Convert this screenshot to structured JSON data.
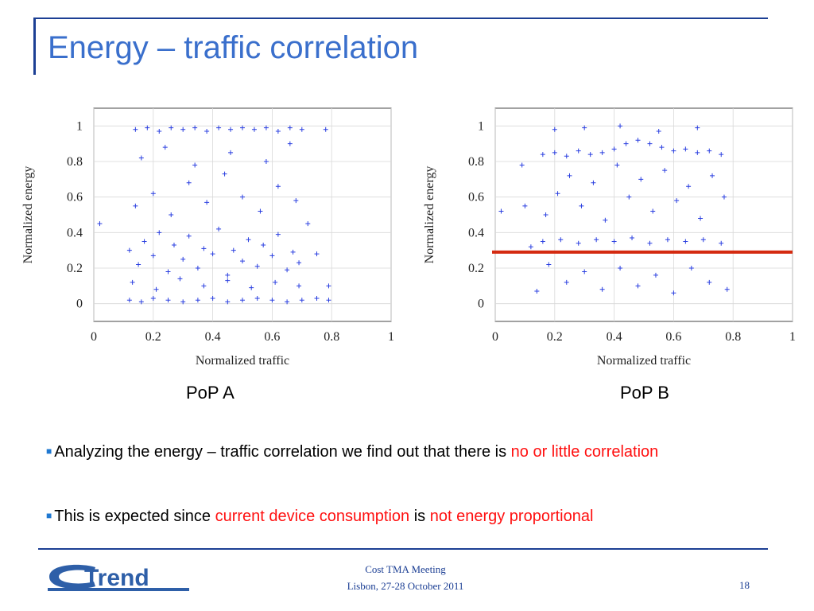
{
  "slide": {
    "title": "Energy – traffic correlation",
    "bullets": [
      [
        {
          "text": "Analyzing the energy – traffic correlation we find out that there is ",
          "red": false
        },
        {
          "text": "no or little correlation",
          "red": true
        }
      ],
      [
        {
          "text": "This is expected since ",
          "red": false
        },
        {
          "text": "current device consumption",
          "red": true
        },
        {
          "text": " is ",
          "red": false
        },
        {
          "text": "not energy proportional",
          "red": true
        }
      ]
    ],
    "footer": {
      "logo_text": "Trend",
      "meeting": "Cost TMA Meeting",
      "location_date": "Lisbon, 27-28 October 2011",
      "page": "18"
    }
  },
  "colors": {
    "title": "#3a6fcc",
    "rule": "#1c3f94",
    "points": "#2a3fe0",
    "highlight": "#ff1010",
    "reference_line": "#d42a10"
  },
  "chart_data": [
    {
      "type": "scatter",
      "caption": "PoP A",
      "xlabel": "Normalized traffic",
      "ylabel": "Normalized energy",
      "xlim": [
        0,
        1
      ],
      "ylim": [
        -0.1,
        1.1
      ],
      "xticks": [
        "0",
        "0.2",
        "0.4",
        "0.6",
        "0.8",
        "1"
      ],
      "yticks": [
        "0",
        "0.2",
        "0.4",
        "0.6",
        "0.8",
        "1"
      ],
      "grid": true,
      "marker": "+",
      "points": [
        [
          0.12,
          0.02
        ],
        [
          0.16,
          0.01
        ],
        [
          0.2,
          0.03
        ],
        [
          0.25,
          0.02
        ],
        [
          0.3,
          0.01
        ],
        [
          0.35,
          0.02
        ],
        [
          0.4,
          0.03
        ],
        [
          0.45,
          0.01
        ],
        [
          0.5,
          0.02
        ],
        [
          0.55,
          0.03
        ],
        [
          0.6,
          0.02
        ],
        [
          0.65,
          0.01
        ],
        [
          0.7,
          0.02
        ],
        [
          0.75,
          0.03
        ],
        [
          0.79,
          0.02
        ],
        [
          0.14,
          0.98
        ],
        [
          0.18,
          0.99
        ],
        [
          0.22,
          0.97
        ],
        [
          0.26,
          0.99
        ],
        [
          0.3,
          0.98
        ],
        [
          0.34,
          0.99
        ],
        [
          0.38,
          0.97
        ],
        [
          0.42,
          0.99
        ],
        [
          0.46,
          0.98
        ],
        [
          0.5,
          0.99
        ],
        [
          0.54,
          0.98
        ],
        [
          0.58,
          0.99
        ],
        [
          0.62,
          0.97
        ],
        [
          0.66,
          0.99
        ],
        [
          0.7,
          0.98
        ],
        [
          0.12,
          0.3
        ],
        [
          0.15,
          0.22
        ],
        [
          0.17,
          0.35
        ],
        [
          0.2,
          0.27
        ],
        [
          0.22,
          0.4
        ],
        [
          0.25,
          0.18
        ],
        [
          0.27,
          0.33
        ],
        [
          0.3,
          0.25
        ],
        [
          0.32,
          0.38
        ],
        [
          0.35,
          0.2
        ],
        [
          0.37,
          0.31
        ],
        [
          0.4,
          0.28
        ],
        [
          0.42,
          0.42
        ],
        [
          0.45,
          0.16
        ],
        [
          0.47,
          0.3
        ],
        [
          0.5,
          0.24
        ],
        [
          0.52,
          0.36
        ],
        [
          0.55,
          0.21
        ],
        [
          0.57,
          0.33
        ],
        [
          0.6,
          0.27
        ],
        [
          0.62,
          0.39
        ],
        [
          0.65,
          0.19
        ],
        [
          0.67,
          0.29
        ],
        [
          0.69,
          0.23
        ],
        [
          0.14,
          0.55
        ],
        [
          0.2,
          0.62
        ],
        [
          0.26,
          0.5
        ],
        [
          0.32,
          0.68
        ],
        [
          0.38,
          0.57
        ],
        [
          0.44,
          0.73
        ],
        [
          0.5,
          0.6
        ],
        [
          0.56,
          0.52
        ],
        [
          0.62,
          0.66
        ],
        [
          0.68,
          0.58
        ],
        [
          0.16,
          0.82
        ],
        [
          0.24,
          0.88
        ],
        [
          0.34,
          0.78
        ],
        [
          0.46,
          0.85
        ],
        [
          0.58,
          0.8
        ],
        [
          0.66,
          0.9
        ],
        [
          0.13,
          0.12
        ],
        [
          0.21,
          0.08
        ],
        [
          0.29,
          0.14
        ],
        [
          0.37,
          0.1
        ],
        [
          0.45,
          0.13
        ],
        [
          0.53,
          0.09
        ],
        [
          0.61,
          0.12
        ],
        [
          0.69,
          0.1
        ],
        [
          0.02,
          0.45
        ],
        [
          0.75,
          0.28
        ],
        [
          0.79,
          0.1
        ],
        [
          0.78,
          0.98
        ],
        [
          0.72,
          0.45
        ]
      ]
    },
    {
      "type": "scatter",
      "caption": "PoP B",
      "xlabel": "Normalized traffic",
      "ylabel": "Normalized energy",
      "xlim": [
        0,
        1
      ],
      "ylim": [
        -0.1,
        1.1
      ],
      "xticks": [
        "0",
        "0.2",
        "0.4",
        "0.6",
        "0.8",
        "1"
      ],
      "yticks": [
        "0",
        "0.2",
        "0.4",
        "0.6",
        "0.8",
        "1"
      ],
      "grid": true,
      "marker": "+",
      "reference_line_y": 0.29,
      "points": [
        [
          0.16,
          0.84
        ],
        [
          0.2,
          0.85
        ],
        [
          0.24,
          0.83
        ],
        [
          0.28,
          0.86
        ],
        [
          0.32,
          0.84
        ],
        [
          0.36,
          0.85
        ],
        [
          0.4,
          0.87
        ],
        [
          0.44,
          0.9
        ],
        [
          0.48,
          0.92
        ],
        [
          0.52,
          0.9
        ],
        [
          0.56,
          0.88
        ],
        [
          0.6,
          0.86
        ],
        [
          0.64,
          0.87
        ],
        [
          0.68,
          0.85
        ],
        [
          0.72,
          0.86
        ],
        [
          0.76,
          0.84
        ],
        [
          0.16,
          0.35
        ],
        [
          0.22,
          0.36
        ],
        [
          0.28,
          0.34
        ],
        [
          0.34,
          0.36
        ],
        [
          0.4,
          0.35
        ],
        [
          0.46,
          0.37
        ],
        [
          0.52,
          0.34
        ],
        [
          0.58,
          0.36
        ],
        [
          0.64,
          0.35
        ],
        [
          0.7,
          0.36
        ],
        [
          0.76,
          0.34
        ],
        [
          0.17,
          0.5
        ],
        [
          0.21,
          0.62
        ],
        [
          0.25,
          0.72
        ],
        [
          0.29,
          0.55
        ],
        [
          0.33,
          0.68
        ],
        [
          0.37,
          0.47
        ],
        [
          0.41,
          0.78
        ],
        [
          0.45,
          0.6
        ],
        [
          0.49,
          0.7
        ],
        [
          0.53,
          0.52
        ],
        [
          0.57,
          0.75
        ],
        [
          0.61,
          0.58
        ],
        [
          0.65,
          0.66
        ],
        [
          0.69,
          0.48
        ],
        [
          0.73,
          0.72
        ],
        [
          0.77,
          0.6
        ],
        [
          0.18,
          0.22
        ],
        [
          0.24,
          0.12
        ],
        [
          0.3,
          0.18
        ],
        [
          0.36,
          0.08
        ],
        [
          0.42,
          0.2
        ],
        [
          0.48,
          0.1
        ],
        [
          0.54,
          0.16
        ],
        [
          0.6,
          0.06
        ],
        [
          0.66,
          0.2
        ],
        [
          0.72,
          0.12
        ],
        [
          0.78,
          0.08
        ],
        [
          0.2,
          0.98
        ],
        [
          0.3,
          0.99
        ],
        [
          0.42,
          1.0
        ],
        [
          0.55,
          0.97
        ],
        [
          0.68,
          0.99
        ],
        [
          0.02,
          0.52
        ],
        [
          0.09,
          0.78
        ],
        [
          0.1,
          0.55
        ],
        [
          0.12,
          0.32
        ],
        [
          0.14,
          0.07
        ]
      ]
    }
  ]
}
